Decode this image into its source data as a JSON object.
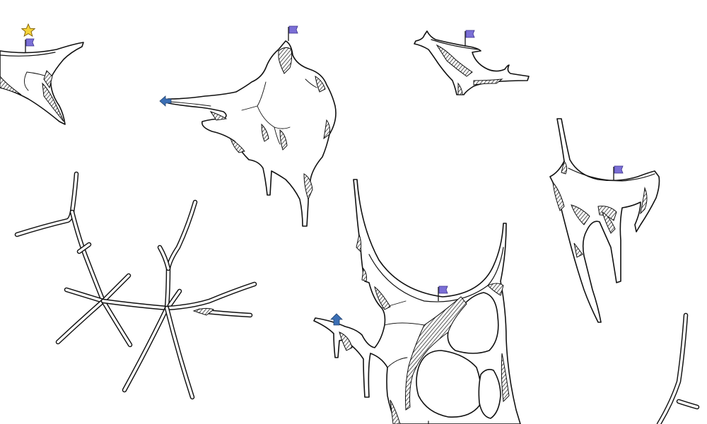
{
  "scene": {
    "background": "#ffffff",
    "rock_fill": "#ffffff",
    "rock_outline": "#111111"
  },
  "markers": {
    "flag_color": "#7b6fd6",
    "arrow_color": "#3b6fb5",
    "star_color": "#f5d33a",
    "flag_icon": "flag-icon",
    "arrow_icon": "arrow-icon",
    "star_icon": "star-icon"
  },
  "islands": [
    {
      "name": "island-top-left",
      "has_flag": true,
      "has_star": true
    },
    {
      "name": "island-top-center",
      "has_flag": true,
      "has_arrow": true,
      "arrow_direction": "left"
    },
    {
      "name": "island-top-right",
      "has_flag": true
    },
    {
      "name": "island-right",
      "has_flag": true
    },
    {
      "name": "island-bottom-center",
      "has_flag": true,
      "has_arrow": true,
      "arrow_direction": "up"
    },
    {
      "name": "branch-cluster-left",
      "has_flag": false
    },
    {
      "name": "branch-right-edge",
      "has_flag": false
    }
  ]
}
